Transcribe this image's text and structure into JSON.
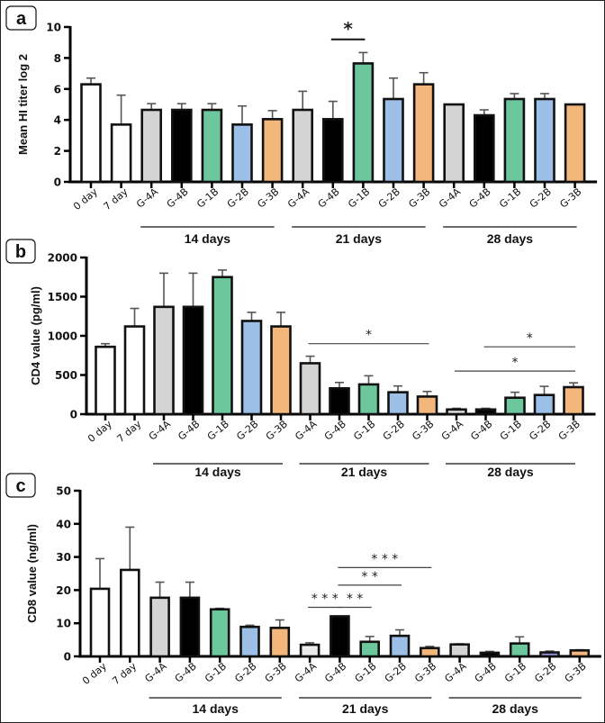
{
  "figure": {
    "colors": {
      "white": "#ffffff",
      "G-4A": "#d4d4d4",
      "G-4B": "#000000",
      "G-1B": "#6cc79c",
      "G-2B": "#9bbfe6",
      "G-3B": "#f3b77c",
      "G-2B-28-c": "#8f8fd6",
      "G-4A-light": "#ececec"
    }
  },
  "chart_data": [
    {
      "type": "bar",
      "panel": "a",
      "title": "",
      "xlabel": "",
      "ylabel": "Mean HI titer log 2",
      "ylim": [
        0,
        10
      ],
      "yticks": [
        0,
        2,
        4,
        6,
        8,
        10
      ],
      "grid": false,
      "categories": [
        "0 day",
        "7 day",
        "G-4A",
        "G-4B",
        "G-1B",
        "G-2B",
        "G-3B",
        "G-4A",
        "G-4B",
        "G-1B",
        "G-2B",
        "G-3B",
        "G-4A",
        "G-4B",
        "G-1B",
        "G-2B",
        "G-3B"
      ],
      "values": [
        6.3,
        3.7,
        4.65,
        4.65,
        4.65,
        3.7,
        4.05,
        4.65,
        4.05,
        7.65,
        5.35,
        6.3,
        5.0,
        4.3,
        5.35,
        5.35,
        5.0
      ],
      "errors": [
        0.4,
        1.9,
        0.4,
        0.4,
        0.4,
        1.2,
        0.55,
        1.2,
        1.15,
        0.7,
        1.35,
        0.75,
        0,
        0.35,
        0.35,
        0.35,
        0
      ],
      "fills": [
        "white",
        "white",
        "G-4A",
        "G-4B",
        "G-1B",
        "G-2B",
        "G-3B",
        "G-4A",
        "G-4B",
        "G-1B",
        "G-2B",
        "G-3B",
        "G-4A",
        "G-4B",
        "G-1B",
        "G-2B",
        "G-3B"
      ],
      "groups": [
        {
          "label": "14 days",
          "from": 2,
          "to": 6
        },
        {
          "label": "21 days",
          "from": 7,
          "to": 11
        },
        {
          "label": "28 days",
          "from": 12,
          "to": 16
        }
      ],
      "significance": [
        {
          "from": 8,
          "to": 9,
          "level": 9.2,
          "label": "*"
        }
      ]
    },
    {
      "type": "bar",
      "panel": "b",
      "title": "",
      "xlabel": "",
      "ylabel": "CD4 value (pg/ml)",
      "ylim": [
        0,
        2000
      ],
      "yticks": [
        0,
        500,
        1000,
        1500,
        2000
      ],
      "grid": false,
      "categories": [
        "0 day",
        "7 day",
        "G-4A",
        "G-4B",
        "G-1B",
        "G-2B",
        "G-3B",
        "G-4A",
        "G-4B",
        "G-1B",
        "G-2B",
        "G-3B",
        "G-4A",
        "G-4B",
        "G-1B",
        "G-2B",
        "G-3B"
      ],
      "values": [
        860,
        1120,
        1370,
        1370,
        1750,
        1190,
        1120,
        650,
        330,
        380,
        280,
        225,
        60,
        60,
        210,
        245,
        345
      ],
      "errors": [
        40,
        230,
        430,
        430,
        90,
        110,
        180,
        90,
        75,
        110,
        80,
        65,
        15,
        15,
        70,
        110,
        55
      ],
      "fills": [
        "white",
        "white",
        "G-4A",
        "G-4B",
        "G-1B",
        "G-2B",
        "G-3B",
        "G-4A",
        "G-4B",
        "G-1B",
        "G-2B",
        "G-3B",
        "G-4A",
        "G-4B",
        "G-1B",
        "G-2B",
        "G-3B"
      ],
      "groups": [
        {
          "label": "14 days",
          "from": 2,
          "to": 6
        },
        {
          "label": "21 days",
          "from": 7,
          "to": 11
        },
        {
          "label": "28 days",
          "from": 12,
          "to": 16
        }
      ],
      "significance": [
        {
          "from": 7,
          "to": 11,
          "level": 900,
          "label": "*"
        },
        {
          "from": 13,
          "to": 16,
          "level": 860,
          "label": "*"
        },
        {
          "from": 12,
          "to": 16,
          "level": 550,
          "label": "*"
        }
      ]
    },
    {
      "type": "bar",
      "panel": "c",
      "title": "",
      "xlabel": "",
      "ylabel": "CD8 value (ng/ml)",
      "ylim": [
        0,
        50
      ],
      "yticks": [
        0,
        10,
        20,
        30,
        40,
        50
      ],
      "grid": false,
      "categories": [
        "0 day",
        "7 day",
        "G-4A",
        "G-4B",
        "G-1B",
        "G-2B",
        "G-3B",
        "G-4A",
        "G-4B",
        "G-1B",
        "G-2B",
        "G-3B",
        "G-4A",
        "G-4B",
        "G-1B",
        "G-2B",
        "G-3B"
      ],
      "values": [
        20.4,
        26.1,
        17.7,
        17.7,
        14.2,
        8.9,
        8.6,
        3.5,
        12.1,
        4.4,
        6.2,
        2.5,
        3.6,
        1.1,
        3.9,
        1.2,
        1.8
      ],
      "errors": [
        9.1,
        12.9,
        4.7,
        4.7,
        0.3,
        0.5,
        2.4,
        0.6,
        0,
        1.6,
        1.8,
        0.5,
        0.2,
        0.4,
        2.0,
        0.4,
        0.2
      ],
      "fills": [
        "white",
        "white",
        "G-4A",
        "G-4B",
        "G-1B",
        "G-2B",
        "G-3B",
        "G-4A-light",
        "G-4B",
        "G-1B",
        "G-2B",
        "G-3B",
        "G-4A",
        "G-4B",
        "G-1B",
        "G-2B-28-c",
        "G-3B"
      ],
      "groups": [
        {
          "label": "14 days",
          "from": 2,
          "to": 6
        },
        {
          "label": "21 days",
          "from": 7,
          "to": 11
        },
        {
          "label": "28 days",
          "from": 12,
          "to": 16
        }
      ],
      "significance": [
        {
          "from": 7,
          "to": 8,
          "level": 14.8,
          "label": "* * *"
        },
        {
          "from": 8,
          "to": 9,
          "level": 14.8,
          "label": "* *"
        },
        {
          "from": 8,
          "to": 10,
          "level": 21.5,
          "label": "* *"
        },
        {
          "from": 8,
          "to": 11,
          "level": 26.8,
          "label": "* * *"
        }
      ]
    }
  ]
}
